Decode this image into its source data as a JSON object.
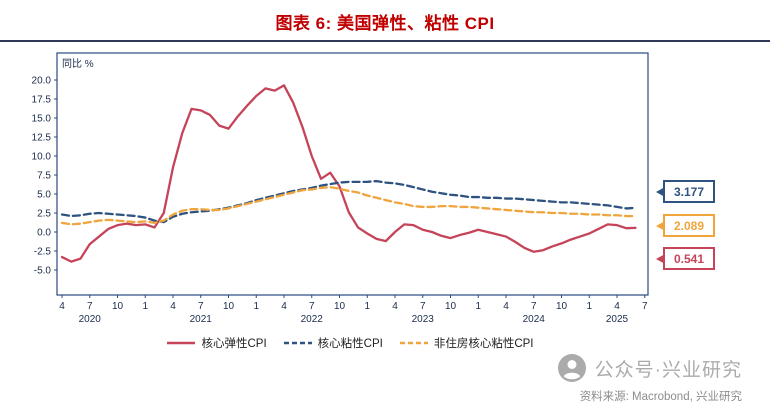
{
  "title": "图表 6: 美国弹性、粘性 CPI",
  "colors": {
    "title": "#c00000",
    "divider": "#2e3a55",
    "frame": "#2b4a80",
    "axis": "#1a2b4a",
    "legend": "#222222",
    "source": "#8c8c8c",
    "watermark": "#ababab"
  },
  "chart_data": {
    "type": "line",
    "unit_label": "同比 %",
    "ylim": [
      -5,
      20
    ],
    "y_ticks": [
      20,
      17.5,
      15,
      12.5,
      10,
      7.5,
      5,
      2.5,
      0,
      -2.5,
      -5
    ],
    "x_ticks": [
      "4",
      "7",
      "10",
      "1",
      "4",
      "7",
      "10",
      "1",
      "4",
      "7",
      "10",
      "1",
      "4",
      "7",
      "10",
      "1",
      "4",
      "7",
      "10",
      "1",
      "4",
      "7"
    ],
    "year_labels": [
      "2020",
      "2021",
      "2022",
      "2023",
      "2024",
      "2025"
    ],
    "x_start": "2020-04",
    "x_end": "2025-06",
    "grid": false,
    "legend_position": "bottom",
    "series": [
      {
        "name": "核心弹性CPI",
        "color": "#c54459",
        "style": "solid",
        "end_value": 0.541,
        "values": [
          -3.3,
          -3.9,
          -3.5,
          -1.6,
          -0.6,
          0.4,
          0.9,
          1.1,
          0.9,
          1.0,
          0.6,
          2.5,
          8.5,
          13.0,
          16.2,
          16.0,
          15.4,
          14.0,
          13.6,
          15.2,
          16.6,
          17.9,
          18.9,
          18.6,
          19.3,
          17.0,
          13.8,
          10.0,
          7.0,
          7.8,
          6.0,
          2.6,
          0.6,
          -0.2,
          -0.9,
          -1.2,
          0.0,
          1.0,
          0.9,
          0.3,
          0.0,
          -0.5,
          -0.8,
          -0.4,
          -0.1,
          0.3,
          0.0,
          -0.3,
          -0.6,
          -1.3,
          -2.1,
          -2.6,
          -2.4,
          -1.9,
          -1.5,
          -1.0,
          -0.6,
          -0.2,
          0.4,
          1.0,
          0.9,
          0.5,
          0.541
        ]
      },
      {
        "name": "核心粘性CPI",
        "color": "#2f5381",
        "style": "dashed",
        "end_value": 3.177,
        "values": [
          2.3,
          2.1,
          2.2,
          2.4,
          2.5,
          2.4,
          2.3,
          2.2,
          2.1,
          1.9,
          1.5,
          1.3,
          2.0,
          2.4,
          2.6,
          2.7,
          2.8,
          3.0,
          3.2,
          3.5,
          3.8,
          4.2,
          4.5,
          4.8,
          5.1,
          5.4,
          5.6,
          5.8,
          6.1,
          6.3,
          6.5,
          6.6,
          6.6,
          6.6,
          6.7,
          6.5,
          6.4,
          6.2,
          5.9,
          5.6,
          5.3,
          5.1,
          4.9,
          4.8,
          4.6,
          4.6,
          4.5,
          4.5,
          4.4,
          4.4,
          4.3,
          4.2,
          4.1,
          4.0,
          3.9,
          3.9,
          3.8,
          3.7,
          3.6,
          3.5,
          3.3,
          3.1,
          3.177
        ]
      },
      {
        "name": "非住房核心粘性CPI",
        "color": "#efa53c",
        "style": "dashed",
        "end_value": 2.089,
        "values": [
          1.2,
          1.0,
          1.1,
          1.3,
          1.5,
          1.6,
          1.5,
          1.4,
          1.3,
          1.4,
          1.2,
          1.5,
          2.3,
          2.8,
          3.0,
          3.0,
          2.9,
          2.9,
          3.1,
          3.4,
          3.7,
          4.0,
          4.3,
          4.6,
          4.9,
          5.2,
          5.5,
          5.6,
          5.8,
          5.9,
          5.7,
          5.4,
          5.2,
          4.8,
          4.5,
          4.2,
          3.9,
          3.7,
          3.4,
          3.3,
          3.3,
          3.4,
          3.4,
          3.3,
          3.3,
          3.2,
          3.1,
          3.0,
          2.9,
          2.8,
          2.7,
          2.6,
          2.6,
          2.5,
          2.5,
          2.4,
          2.4,
          2.3,
          2.3,
          2.2,
          2.2,
          2.1,
          2.089
        ]
      }
    ],
    "end_labels": [
      {
        "series": "核心粘性CPI",
        "value": "3.177",
        "color": "#2f5381"
      },
      {
        "series": "非住房核心粘性CPI",
        "value": "2.089",
        "color": "#efa53c"
      },
      {
        "series": "核心弹性CPI",
        "value": "0.541",
        "color": "#c54459"
      }
    ]
  },
  "watermark": "公众号·兴业研究",
  "source": "资料来源: Macrobond, 兴业研究"
}
